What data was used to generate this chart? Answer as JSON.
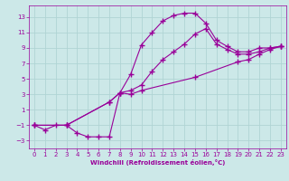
{
  "bg_color": "#cce8e8",
  "grid_color": "#b0d4d4",
  "line_color": "#990099",
  "marker": "+",
  "xlabel": "Windchill (Refroidissement éolien,°C)",
  "xlim": [
    -0.5,
    23.5
  ],
  "ylim": [
    -4,
    14.5
  ],
  "xticks": [
    0,
    1,
    2,
    3,
    4,
    5,
    6,
    7,
    8,
    9,
    10,
    11,
    12,
    13,
    14,
    15,
    16,
    17,
    18,
    19,
    20,
    21,
    22,
    23
  ],
  "yticks": [
    -3,
    -1,
    1,
    3,
    5,
    7,
    9,
    11,
    13
  ],
  "line1_x": [
    0,
    1,
    2,
    3,
    4,
    5,
    6,
    7,
    8,
    9,
    10,
    11,
    12,
    13,
    14,
    15,
    16,
    17,
    18,
    19,
    20,
    21,
    22,
    23
  ],
  "line1_y": [
    -1,
    -1.6,
    -1,
    -1,
    -2,
    -2.5,
    -2.5,
    -2.5,
    3.2,
    5.6,
    9.4,
    11.0,
    12.5,
    13.2,
    13.5,
    13.5,
    12.2,
    10.0,
    9.2,
    8.5,
    8.5,
    9.0,
    9.0,
    9.2
  ],
  "line2_x": [
    0,
    3,
    7,
    8,
    9,
    10,
    11,
    12,
    13,
    14,
    15,
    16,
    17,
    18,
    19,
    20,
    21,
    22,
    23
  ],
  "line2_y": [
    -1,
    -1,
    2.0,
    3.2,
    3.5,
    4.2,
    6.0,
    7.5,
    8.5,
    9.5,
    10.8,
    11.5,
    9.5,
    8.8,
    8.2,
    8.2,
    8.5,
    9.0,
    9.2
  ],
  "line3_x": [
    0,
    3,
    7,
    8,
    9,
    10,
    15,
    19,
    20,
    21,
    22,
    23
  ],
  "line3_y": [
    -1,
    -1,
    2.0,
    3.2,
    3.0,
    3.5,
    5.2,
    7.2,
    7.5,
    8.2,
    8.8,
    9.2
  ]
}
